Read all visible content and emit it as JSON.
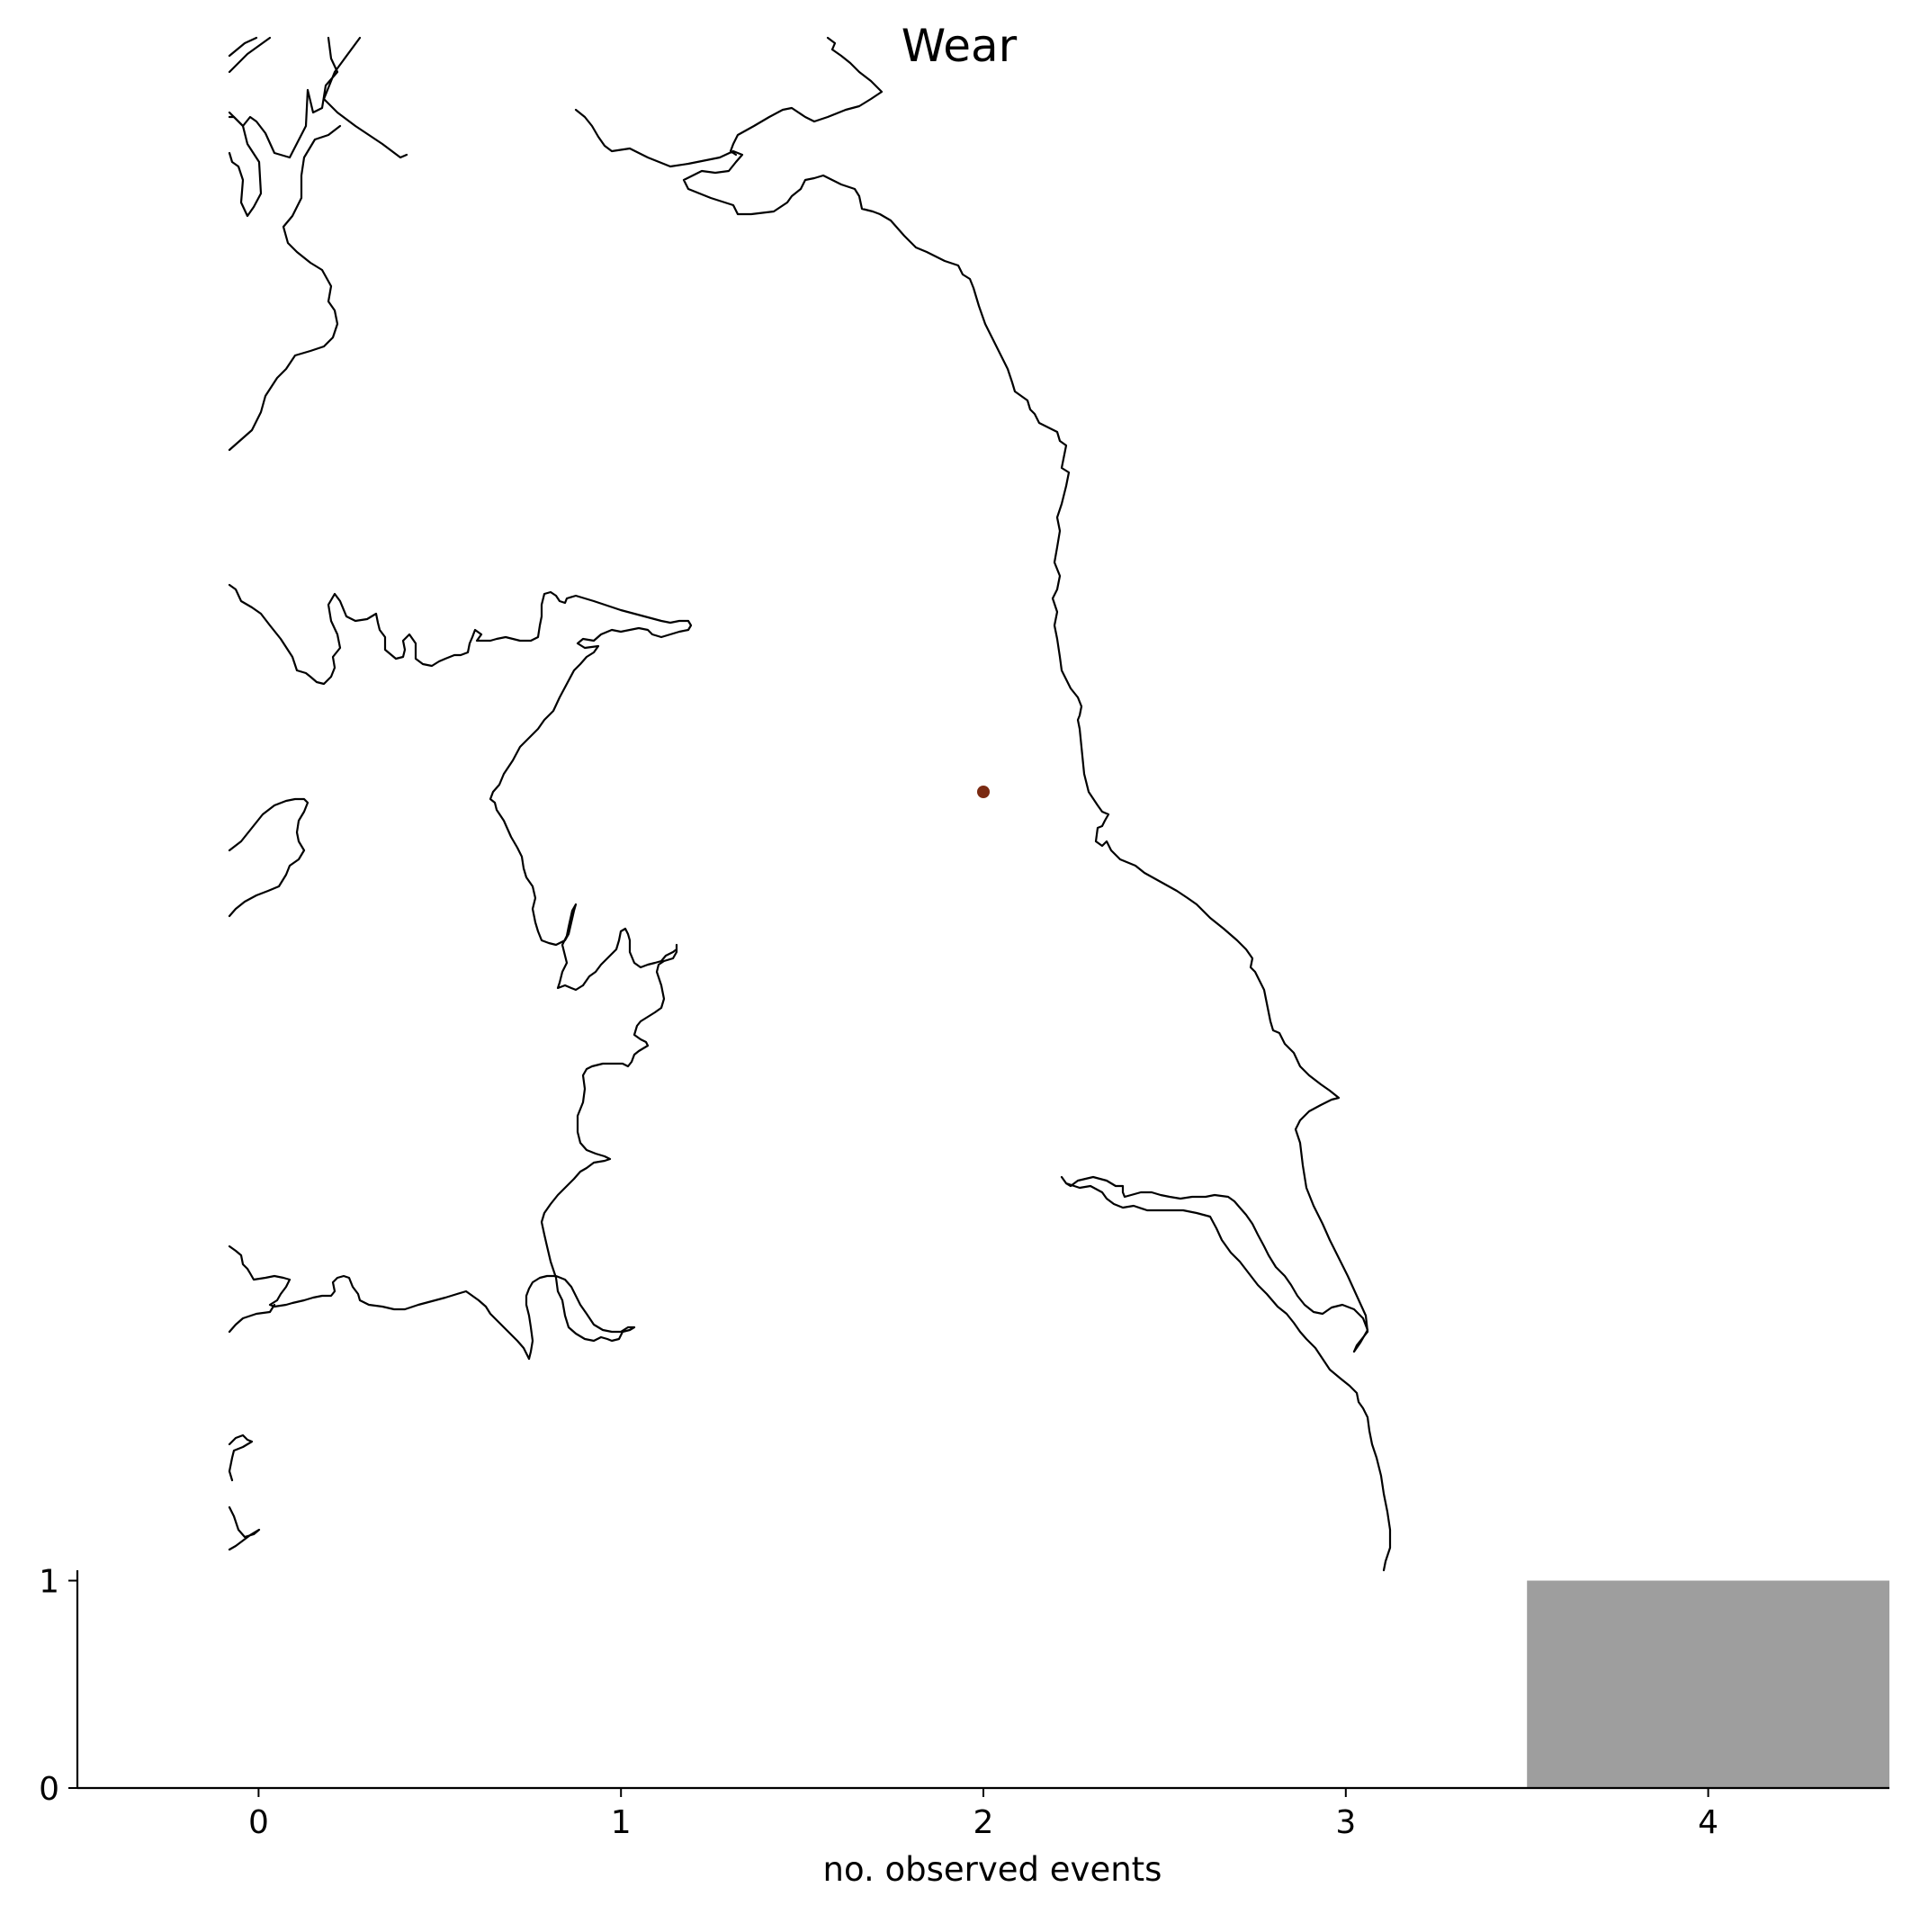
{
  "figure": {
    "title": "Wear"
  },
  "map": {
    "station_color": "#7a2a12",
    "coastline_color": "#000000"
  },
  "chart_data": {
    "type": "bar",
    "categories": [
      "0",
      "1",
      "2",
      "3",
      "4"
    ],
    "x": [
      0,
      1,
      2,
      3,
      4
    ],
    "values": [
      0,
      0,
      0,
      0,
      1
    ],
    "xlabel": "no. observed events",
    "ylabel": "",
    "xlim": [
      -0.5,
      4.5
    ],
    "ylim": [
      0,
      1.05
    ],
    "yticks": [
      0,
      1
    ],
    "bar_color": "#9e9e9e",
    "grid": false
  }
}
